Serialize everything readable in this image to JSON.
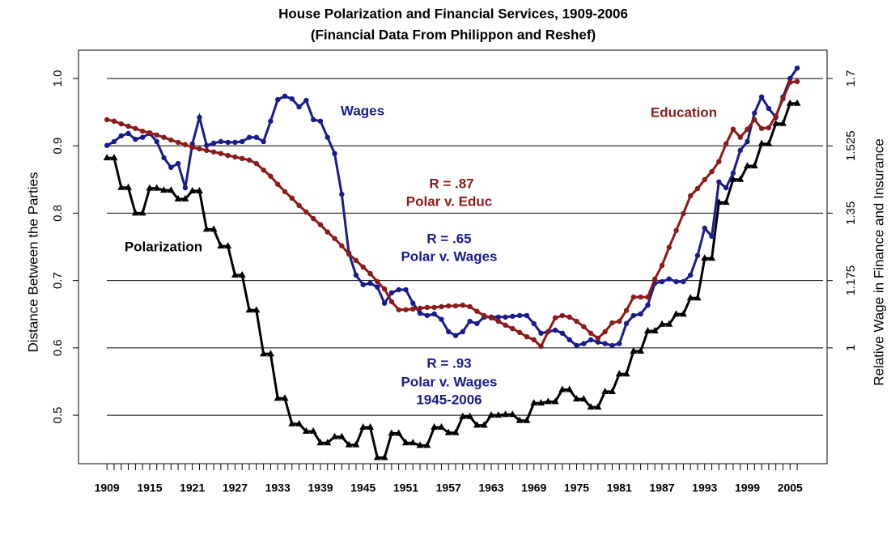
{
  "chart_data": {
    "type": "line",
    "title": "House Polarization and Financial Services, 1909-2006",
    "subtitle": "(Financial Data From Philippon and Reshef)",
    "y_label": "Distance Between the Parties",
    "y2_label": "Relative Wage in Finance and Insurance",
    "x": [
      1909,
      1910,
      1911,
      1912,
      1913,
      1914,
      1915,
      1916,
      1917,
      1918,
      1919,
      1920,
      1921,
      1922,
      1923,
      1924,
      1925,
      1926,
      1927,
      1928,
      1929,
      1930,
      1931,
      1932,
      1933,
      1934,
      1935,
      1936,
      1937,
      1938,
      1939,
      1940,
      1941,
      1942,
      1943,
      1944,
      1945,
      1946,
      1947,
      1948,
      1949,
      1950,
      1951,
      1952,
      1953,
      1954,
      1955,
      1956,
      1957,
      1958,
      1959,
      1960,
      1961,
      1962,
      1963,
      1964,
      1965,
      1966,
      1967,
      1968,
      1969,
      1970,
      1971,
      1972,
      1973,
      1974,
      1975,
      1976,
      1977,
      1978,
      1979,
      1980,
      1981,
      1982,
      1983,
      1984,
      1985,
      1986,
      1987,
      1988,
      1989,
      1990,
      1991,
      1992,
      1993,
      1994,
      1995,
      1996,
      1997,
      1998,
      1999,
      2000,
      2001,
      2002,
      2003,
      2004,
      2005,
      2006
    ],
    "xlim": [
      1905,
      2010.2
    ],
    "xticks": [
      1909,
      1915,
      1921,
      1927,
      1933,
      1939,
      1945,
      1951,
      1957,
      1963,
      1969,
      1975,
      1981,
      1987,
      1993,
      1999,
      2005
    ],
    "ylim": [
      0.428,
      1.042
    ],
    "yticks": [
      0.5,
      0.6,
      0.7,
      0.8,
      0.9,
      {
        "value": 1,
        "label": "1.0"
      }
    ],
    "y2lim": [
      0.699,
      1.7735
    ],
    "y2ticks": [
      1,
      1.175,
      1.35,
      1.525,
      1.7
    ],
    "grid": true,
    "series": [
      {
        "name": "Polarization",
        "color": "#000000",
        "marker": "triangle",
        "values": [
          0.882,
          0.882,
          0.838,
          0.838,
          0.8,
          0.8,
          0.837,
          0.837,
          0.834,
          0.834,
          0.821,
          0.821,
          0.833,
          0.833,
          0.776,
          0.776,
          0.751,
          0.751,
          0.708,
          0.708,
          0.656,
          0.656,
          0.591,
          0.591,
          0.525,
          0.525,
          0.487,
          0.487,
          0.476,
          0.476,
          0.459,
          0.459,
          0.468,
          0.468,
          0.456,
          0.456,
          0.482,
          0.482,
          0.437,
          0.437,
          0.473,
          0.473,
          0.459,
          0.459,
          0.455,
          0.455,
          0.482,
          0.482,
          0.474,
          0.474,
          0.498,
          0.498,
          0.485,
          0.485,
          0.5,
          0.5,
          0.501,
          0.501,
          0.492,
          0.492,
          0.518,
          0.518,
          0.52,
          0.52,
          0.538,
          0.538,
          0.524,
          0.524,
          0.512,
          0.512,
          0.535,
          0.535,
          0.561,
          0.561,
          0.595,
          0.595,
          0.625,
          0.625,
          0.635,
          0.635,
          0.65,
          0.65,
          0.674,
          0.674,
          0.733,
          0.733,
          0.816,
          0.816,
          0.85,
          0.85,
          0.87,
          0.87,
          0.903,
          0.903,
          0.933,
          0.933,
          0.963,
          0.963
        ]
      },
      {
        "name": "Wages",
        "color": "#1a1a8c",
        "marker": "circle",
        "axis": "y2",
        "values": [
          1.526,
          1.536,
          1.551,
          1.557,
          1.542,
          1.547,
          1.557,
          1.536,
          1.494,
          1.469,
          1.479,
          1.416,
          1.53,
          1.599,
          1.526,
          1.532,
          1.536,
          1.534,
          1.534,
          1.536,
          1.547,
          1.547,
          1.536,
          1.589,
          1.645,
          1.654,
          1.647,
          1.626,
          1.643,
          1.593,
          1.589,
          1.547,
          1.505,
          1.399,
          1.246,
          1.189,
          1.164,
          1.168,
          1.158,
          1.116,
          1.143,
          1.151,
          1.151,
          1.116,
          1.09,
          1.084,
          1.088,
          1.074,
          1.042,
          1.032,
          1.042,
          1.069,
          1.063,
          1.08,
          1.08,
          1.08,
          1.08,
          1.082,
          1.084,
          1.084,
          1.063,
          1.038,
          1.042,
          1.046,
          1.038,
          1.021,
          1.006,
          1.011,
          1.021,
          1.015,
          1.011,
          1.006,
          1.011,
          1.063,
          1.084,
          1.088,
          1.111,
          1.168,
          1.172,
          1.179,
          1.172,
          1.172,
          1.189,
          1.24,
          1.311,
          1.29,
          1.431,
          1.416,
          1.454,
          1.513,
          1.536,
          1.61,
          1.652,
          1.622,
          1.599,
          1.652,
          1.7,
          1.727
        ]
      },
      {
        "name": "Education",
        "color": "#8b1a1a",
        "marker": "circle",
        "axis": "y2",
        "values": [
          1.593,
          1.589,
          1.582,
          1.576,
          1.57,
          1.563,
          1.559,
          1.553,
          1.547,
          1.54,
          1.534,
          1.528,
          1.521,
          1.517,
          1.513,
          1.509,
          1.505,
          1.5,
          1.496,
          1.492,
          1.488,
          1.479,
          1.462,
          1.446,
          1.425,
          1.406,
          1.389,
          1.37,
          1.353,
          1.336,
          1.32,
          1.301,
          1.284,
          1.265,
          1.244,
          1.227,
          1.21,
          1.193,
          1.172,
          1.153,
          1.12,
          1.099,
          1.099,
          1.101,
          1.103,
          1.105,
          1.105,
          1.107,
          1.109,
          1.109,
          1.111,
          1.107,
          1.095,
          1.084,
          1.078,
          1.069,
          1.059,
          1.05,
          1.04,
          1.029,
          1.021,
          1.004,
          1.042,
          1.078,
          1.084,
          1.08,
          1.069,
          1.055,
          1.038,
          1.025,
          1.042,
          1.065,
          1.069,
          1.097,
          1.132,
          1.132,
          1.132,
          1.179,
          1.214,
          1.261,
          1.305,
          1.349,
          1.395,
          1.414,
          1.437,
          1.458,
          1.484,
          1.53,
          1.568,
          1.547,
          1.568,
          1.593,
          1.57,
          1.572,
          1.603,
          1.647,
          1.69,
          1.692
        ]
      }
    ],
    "annotations": [
      {
        "text": "R = .87",
        "color": "#8b1a1a"
      },
      {
        "text": "Polar v. Educ",
        "color": "#8b1a1a"
      },
      {
        "text": "R = .65",
        "color": "#1a1a8c"
      },
      {
        "text": "Polar v. Wages",
        "color": "#1a1a8c"
      },
      {
        "text": "R = .93",
        "color": "#1a1a8c"
      },
      {
        "text": "Polar v. Wages",
        "color": "#1a1a8c"
      },
      {
        "text": "1945-2006",
        "color": "#1a1a8c"
      }
    ]
  }
}
